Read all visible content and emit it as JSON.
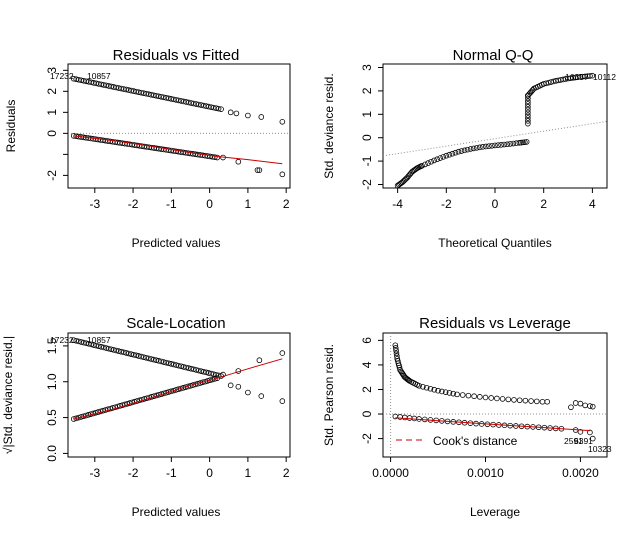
{
  "colors": {
    "points": "#000000",
    "smooth": "#cc0000",
    "ref_line": "#909090",
    "cooks": "#cc0000",
    "axis": "#000000",
    "background": "#ffffff"
  },
  "chart_data": [
    {
      "type": "scatter",
      "title": "Residuals vs Fitted",
      "xlabel": "Predicted values",
      "ylabel": "Residuals",
      "xlim": [
        -3.7,
        2.1
      ],
      "ylim": [
        -2.6,
        3.3
      ],
      "xticks": [
        -3,
        -2,
        -1,
        0,
        1,
        2
      ],
      "yticks": [
        -2,
        -1,
        0,
        1,
        2,
        3
      ],
      "ytick_labels": [
        "-2",
        "",
        "0",
        "1",
        "2",
        "3"
      ],
      "upper_band": {
        "x_range": [
          -3.55,
          0.3
        ],
        "y_at_start": 2.6,
        "y_at_end": 1.15
      },
      "lower_band": {
        "x_range": [
          -3.55,
          0.2
        ],
        "y_at_start": -0.12,
        "y_at_end": -1.15
      },
      "upper_sparse": [
        [
          0.55,
          1.0
        ],
        [
          0.7,
          0.95
        ],
        [
          1.0,
          0.85
        ],
        [
          1.35,
          0.78
        ],
        [
          1.9,
          0.55
        ]
      ],
      "lower_sparse": [
        [
          0.35,
          -1.15
        ],
        [
          0.75,
          -1.35
        ],
        [
          1.25,
          -1.75
        ],
        [
          1.3,
          -1.75
        ],
        [
          1.9,
          -1.95
        ]
      ],
      "smooth": [
        [
          -3.55,
          -0.12
        ],
        [
          -2.5,
          -0.35
        ],
        [
          -1.5,
          -0.62
        ],
        [
          -0.5,
          -0.92
        ],
        [
          0.2,
          -1.1
        ],
        [
          1.0,
          -1.25
        ],
        [
          1.9,
          -1.45
        ]
      ],
      "ref_line_y": 0,
      "point_labels": [
        "17232",
        "10857"
      ]
    },
    {
      "type": "scatter",
      "title": "Normal Q-Q",
      "xlabel": "Theoretical Quantiles",
      "ylabel": "Std. deviance resid.",
      "xlim": [
        -4.6,
        4.6
      ],
      "ylim": [
        -2.15,
        3.15
      ],
      "xticks": [
        -4,
        -2,
        0,
        2,
        4
      ],
      "yticks": [
        -2,
        -1,
        0,
        1,
        2,
        3
      ],
      "low_branch": [
        [
          -4.0,
          -2.05
        ],
        [
          -3.8,
          -1.9
        ],
        [
          -3.6,
          -1.7
        ],
        [
          -3.4,
          -1.45
        ],
        [
          -3.2,
          -1.3
        ],
        [
          -3.0,
          -1.2
        ],
        [
          -2.5,
          -0.97
        ],
        [
          -2.0,
          -0.77
        ],
        [
          -1.5,
          -0.6
        ],
        [
          -1.0,
          -0.48
        ],
        [
          -0.5,
          -0.39
        ],
        [
          0.0,
          -0.33
        ],
        [
          0.5,
          -0.28
        ],
        [
          1.0,
          -0.22
        ],
        [
          1.3,
          -0.18
        ]
      ],
      "jump": {
        "x": 1.35,
        "y_from": 0.6,
        "y_to": 1.8
      },
      "high_branch": [
        [
          1.35,
          1.8
        ],
        [
          1.6,
          2.1
        ],
        [
          2.0,
          2.3
        ],
        [
          2.5,
          2.43
        ],
        [
          3.0,
          2.53
        ],
        [
          3.5,
          2.6
        ],
        [
          4.0,
          2.65
        ]
      ],
      "ref_line": {
        "intercept": -0.04,
        "slope": 0.16
      },
      "point_labels": [
        "16357",
        "10112"
      ]
    },
    {
      "type": "scatter",
      "title": "Scale-Location",
      "xlabel": "Predicted values",
      "ylabel": "√|Std. deviance resid.|",
      "xlim": [
        -3.7,
        2.1
      ],
      "ylim": [
        -0.05,
        1.68
      ],
      "xticks": [
        -3,
        -2,
        -1,
        0,
        1,
        2
      ],
      "yticks": [
        0.0,
        0.5,
        1.0,
        1.5
      ],
      "upper_band": {
        "x_range": [
          -3.55,
          0.3
        ],
        "y_at_start": 1.58,
        "y_at_end": 1.08
      },
      "lower_band": {
        "x_range": [
          -3.55,
          0.2
        ],
        "y_at_start": 0.48,
        "y_at_end": 1.05
      },
      "upper_sparse": [
        [
          0.55,
          0.95
        ],
        [
          0.75,
          0.93
        ],
        [
          1.0,
          0.85
        ],
        [
          1.35,
          0.8
        ],
        [
          1.9,
          0.73
        ]
      ],
      "lower_sparse": [
        [
          0.35,
          1.1
        ],
        [
          0.75,
          1.15
        ],
        [
          1.3,
          1.3
        ],
        [
          1.9,
          1.4
        ]
      ],
      "smooth": [
        [
          -3.55,
          0.48
        ],
        [
          -2.5,
          0.62
        ],
        [
          -1.5,
          0.78
        ],
        [
          -0.5,
          0.95
        ],
        [
          0.2,
          1.05
        ],
        [
          1.0,
          1.18
        ],
        [
          1.9,
          1.32
        ]
      ],
      "point_labels": [
        "17232",
        "10857"
      ]
    },
    {
      "type": "scatter",
      "title": "Residuals vs Leverage",
      "xlabel": "Leverage",
      "ylabel": "Std. Pearson resid.",
      "xlim": [
        -8e-05,
        0.00228
      ],
      "ylim": [
        -3.5,
        6.6
      ],
      "xticks": [
        0.0,
        0.001,
        0.002
      ],
      "xtick_labels": [
        "0.0000",
        "0.0010",
        "0.0020"
      ],
      "yticks": [
        -2,
        0,
        2,
        4,
        6
      ],
      "upper_branch": [
        [
          5e-05,
          5.6
        ],
        [
          7e-05,
          4.5
        ],
        [
          0.0001,
          3.6
        ],
        [
          0.00015,
          3.0
        ],
        [
          0.0002,
          2.7
        ],
        [
          0.0003,
          2.3
        ],
        [
          0.0005,
          1.9
        ],
        [
          0.0007,
          1.6
        ],
        [
          0.001,
          1.35
        ],
        [
          0.0013,
          1.15
        ],
        [
          0.0016,
          1.0
        ]
      ],
      "upper_sparse": [
        [
          0.00165,
          1.0
        ],
        [
          0.0019,
          0.55
        ],
        [
          0.00195,
          0.9
        ],
        [
          0.002,
          0.85
        ],
        [
          0.00205,
          0.7
        ],
        [
          0.0021,
          0.65
        ],
        [
          0.00213,
          0.6
        ]
      ],
      "lower_branch": [
        [
          5e-05,
          -0.2
        ],
        [
          0.0003,
          -0.4
        ],
        [
          0.0006,
          -0.6
        ],
        [
          0.0009,
          -0.78
        ],
        [
          0.0012,
          -0.92
        ],
        [
          0.0015,
          -1.05
        ],
        [
          0.0018,
          -1.2
        ]
      ],
      "lower_sparse": [
        [
          0.00195,
          -1.3
        ],
        [
          0.002,
          -1.45
        ],
        [
          0.0021,
          -1.5
        ],
        [
          0.00213,
          -2.0
        ]
      ],
      "smooth": [
        [
          5e-05,
          -0.3
        ],
        [
          0.0005,
          -0.55
        ],
        [
          0.001,
          -0.8
        ],
        [
          0.0015,
          -1.05
        ],
        [
          0.0021,
          -1.35
        ]
      ],
      "ref_line_y": 0,
      "ref_line_x": 0,
      "legend": {
        "entry": "Cook's distance",
        "position": "bottom-left"
      },
      "point_labels": [
        "2591",
        "6391",
        "10323"
      ]
    }
  ]
}
